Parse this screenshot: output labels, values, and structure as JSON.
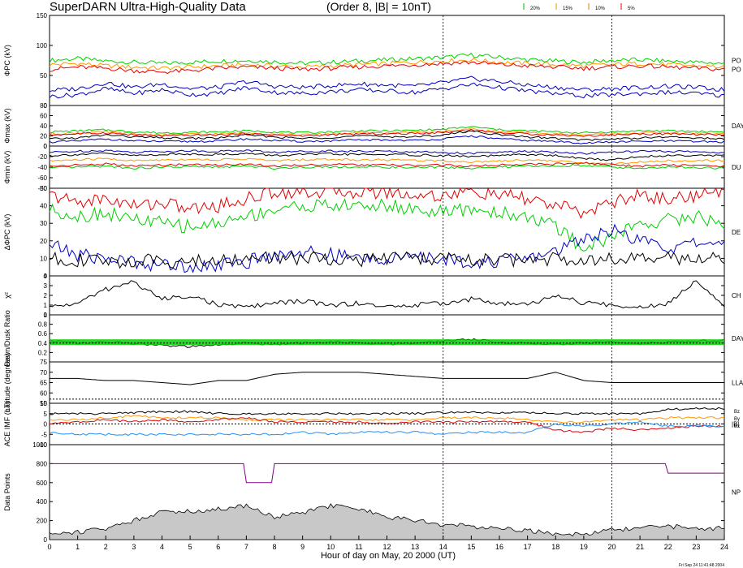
{
  "header": {
    "title": "SuperDARN Ultra-High-Quality Data",
    "subtitle": "(Order 8, |B| = 10nT)",
    "legend": [
      {
        "label": "20%",
        "color": "#00c000"
      },
      {
        "label": "15%",
        "color": "#e0a000"
      },
      {
        "label": "10%",
        "color": "#e08000"
      },
      {
        "label": "5%",
        "color": "#e00000"
      }
    ]
  },
  "footer": {
    "xlabel": "Hour of day on May, 20 2000 (UT)",
    "timestamp": "Fri Sep 24 11:41:48 2004"
  },
  "colors": {
    "red": "#e00000",
    "green": "#00d000",
    "orange": "#ff9900",
    "blue": "#0000c0",
    "black": "#000000",
    "cyan": "#1e90ff",
    "purple": "#800080",
    "gray": "#c8c8c8"
  },
  "chart_data": {
    "type": "line",
    "x": {
      "range": [
        0,
        24
      ],
      "ticks": [
        "0",
        "1",
        "2",
        "3",
        "4",
        "5",
        "6",
        "7",
        "8",
        "9",
        "10",
        "11",
        "12",
        "13",
        "14",
        "15",
        "16",
        "17",
        "18",
        "19",
        "20",
        "21",
        "22",
        "23",
        "24"
      ]
    },
    "markers_x": [
      14,
      20
    ],
    "panels": [
      {
        "id": "pc",
        "ylabel": "ΦPC (kV)",
        "ylim": [
          0,
          150
        ],
        "ticks": [
          "0",
          "50",
          "100",
          "150"
        ],
        "right_label": "PO",
        "right_label2": "PO",
        "series": [
          {
            "color": "green",
            "values": [
              75,
              78,
              74,
              72,
              70,
              72,
              74,
              75,
              73,
              70,
              72,
              74,
              76,
              78,
              80,
              84,
              80,
              76,
              74,
              72,
              75,
              76,
              74,
              72,
              70
            ]
          },
          {
            "color": "orange",
            "values": [
              68,
              70,
              66,
              64,
              62,
              64,
              66,
              68,
              66,
              64,
              66,
              68,
              70,
              72,
              74,
              76,
              72,
              70,
              68,
              66,
              68,
              70,
              68,
              66,
              64
            ]
          },
          {
            "color": "red",
            "values": [
              60,
              64,
              62,
              58,
              56,
              58,
              62,
              64,
              62,
              60,
              62,
              64,
              66,
              68,
              70,
              72,
              68,
              66,
              64,
              62,
              64,
              66,
              64,
              62,
              60
            ]
          },
          {
            "color": "blue",
            "values": [
              25,
              28,
              38,
              30,
              36,
              28,
              30,
              40,
              32,
              30,
              33,
              36,
              34,
              32,
              38,
              45,
              40,
              34,
              30,
              26,
              28,
              30,
              32,
              30,
              26
            ]
          },
          {
            "color": "blue",
            "values": [
              15,
              18,
              28,
              20,
              26,
              18,
              20,
              30,
              22,
              20,
              23,
              26,
              24,
              22,
              28,
              35,
              30,
              24,
              20,
              16,
              18,
              20,
              22,
              20,
              16
            ]
          }
        ]
      },
      {
        "id": "max",
        "ylabel": "Φmax (kV)",
        "ylim": [
          0,
          80
        ],
        "ticks": [
          "0",
          "20",
          "40",
          "60",
          "80"
        ],
        "right_label": "DAY",
        "series": [
          {
            "color": "green",
            "values": [
              28,
              30,
              32,
              28,
              26,
              27,
              28,
              30,
              28,
              26,
              28,
              30,
              30,
              31,
              33,
              38,
              32,
              30,
              28,
              26,
              28,
              30,
              30,
              29,
              28
            ]
          },
          {
            "color": "orange",
            "values": [
              24,
              26,
              28,
              24,
              22,
              23,
              24,
              26,
              24,
              22,
              24,
              26,
              26,
              27,
              29,
              34,
              28,
              26,
              24,
              22,
              24,
              26,
              26,
              25,
              24
            ]
          },
          {
            "color": "red",
            "values": [
              22,
              24,
              26,
              22,
              20,
              21,
              22,
              24,
              22,
              20,
              22,
              24,
              24,
              25,
              27,
              32,
              26,
              24,
              22,
              20,
              22,
              24,
              24,
              23,
              22
            ]
          },
          {
            "color": "black",
            "values": [
              14,
              16,
              22,
              18,
              16,
              15,
              16,
              22,
              18,
              15,
              17,
              20,
              19,
              18,
              22,
              30,
              22,
              18,
              15,
              12,
              14,
              16,
              18,
              16,
              14
            ]
          },
          {
            "color": "blue",
            "values": [
              8,
              10,
              14,
              10,
              9,
              9,
              10,
              14,
              11,
              9,
              10,
              12,
              12,
              11,
              14,
              20,
              14,
              11,
              9,
              6,
              8,
              9,
              10,
              9,
              8
            ]
          }
        ]
      },
      {
        "id": "min",
        "ylabel": "Φmin (kV)",
        "ylim": [
          -80,
          0
        ],
        "ticks": [
          "-80",
          "-60",
          "-40",
          "-20",
          "0"
        ],
        "right_label": "DU",
        "series": [
          {
            "color": "blue",
            "values": [
              -12,
              -10,
              -8,
              -12,
              -10,
              -9,
              -10,
              -8,
              -12,
              -10,
              -9,
              -10,
              -10,
              -11,
              -12,
              -14,
              -12,
              -10,
              -12,
              -14,
              -12,
              -10,
              -10,
              -11,
              -12
            ]
          },
          {
            "color": "black",
            "values": [
              -18,
              -16,
              -14,
              -18,
              -16,
              -15,
              -16,
              -14,
              -18,
              -16,
              -15,
              -16,
              -16,
              -17,
              -18,
              -20,
              -18,
              -16,
              -18,
              -24,
              -26,
              -20,
              -18,
              -17,
              -18
            ]
          },
          {
            "color": "orange",
            "values": [
              -28,
              -26,
              -24,
              -28,
              -26,
              -25,
              -26,
              -24,
              -28,
              -26,
              -25,
              -26,
              -26,
              -27,
              -28,
              -30,
              -28,
              -26,
              -28,
              -32,
              -34,
              -30,
              -28,
              -27,
              -28
            ]
          },
          {
            "color": "green",
            "values": [
              -42,
              -40,
              -38,
              -42,
              -40,
              -39,
              -40,
              -38,
              -42,
              -40,
              -39,
              -40,
              -40,
              -41,
              -40,
              -42,
              -40,
              -38,
              -38,
              -36,
              -40,
              -42,
              -40,
              -41,
              -42
            ]
          },
          {
            "color": "red",
            "values": [
              -38,
              -36,
              -34,
              -38,
              -36,
              -35,
              -36,
              -34,
              -38,
              -36,
              -35,
              -36,
              -36,
              -37,
              -36,
              -38,
              -36,
              -34,
              -34,
              -32,
              -36,
              -38,
              -36,
              -37,
              -38
            ]
          }
        ]
      },
      {
        "id": "dpc",
        "ylabel": "ΔΦPC (kV)",
        "ylim": [
          0,
          50
        ],
        "ticks": [
          "0",
          "10",
          "20",
          "30",
          "40",
          "50"
        ],
        "right_label": "DE",
        "series": [
          {
            "color": "red",
            "values": [
              46,
              42,
              44,
              40,
              42,
              38,
              40,
              44,
              48,
              48,
              48,
              48,
              48,
              46,
              46,
              48,
              46,
              44,
              40,
              36,
              42,
              46,
              44,
              46,
              48
            ]
          },
          {
            "color": "green",
            "values": [
              38,
              34,
              36,
              32,
              30,
              28,
              30,
              34,
              38,
              40,
              40,
              40,
              40,
              38,
              36,
              38,
              36,
              34,
              28,
              16,
              22,
              30,
              32,
              34,
              30
            ]
          },
          {
            "color": "blue",
            "values": [
              18,
              12,
              10,
              8,
              6,
              6,
              6,
              8,
              12,
              14,
              12,
              10,
              10,
              10,
              10,
              8,
              8,
              10,
              14,
              22,
              26,
              20,
              16,
              18,
              20
            ]
          },
          {
            "color": "black",
            "values": [
              10,
              9,
              8,
              8,
              9,
              8,
              9,
              10,
              10,
              10,
              10,
              9,
              10,
              10,
              10,
              9,
              9,
              9,
              10,
              10,
              10,
              9,
              10,
              10,
              10
            ]
          }
        ]
      },
      {
        "id": "chi",
        "ylabel": "χ²",
        "ylim": [
          0,
          4
        ],
        "ticks": [
          "0",
          "1",
          "2",
          "3",
          "4"
        ],
        "right_label": "CH",
        "series": [
          {
            "color": "black",
            "values": [
              0.8,
              1.2,
              2.6,
              3.4,
              1.6,
              2.0,
              1.0,
              0.8,
              1.2,
              1.4,
              1.0,
              1.2,
              0.8,
              1.0,
              1.2,
              1.6,
              1.2,
              1.0,
              2.0,
              1.2,
              1.0,
              0.8,
              1.2,
              3.6,
              1.0
            ]
          }
        ]
      },
      {
        "id": "ratio",
        "ylabel": "Dawn/Dusk Ratio",
        "ylim": [
          0,
          1
        ],
        "ticks": [
          "0.2",
          "0.4",
          "0.6",
          "0.8",
          "1"
        ],
        "right_label": "DAY",
        "series": [
          {
            "color": "black",
            "values": [
              0.45,
              0.4,
              0.42,
              0.4,
              0.35,
              0.32,
              0.36,
              0.4,
              0.38,
              0.4,
              0.42,
              0.4,
              0.38,
              0.4,
              0.44,
              0.48,
              0.42,
              0.4,
              0.38,
              0.4,
              0.42,
              0.4,
              0.42,
              0.44,
              0.46
            ]
          }
        ]
      },
      {
        "id": "lat",
        "ylabel": "Latitude (degrees)",
        "ylim": [
          55,
          75
        ],
        "ticks": [
          "55",
          "60",
          "65",
          "70",
          "75"
        ],
        "right_label": "LLA",
        "series": [
          {
            "color": "black",
            "values": [
              67,
              67,
              66,
              66,
              65,
              64,
              66,
              66,
              69,
              70,
              70,
              70,
              69,
              68,
              67,
              67,
              67,
              67,
              70,
              66,
              65,
              65,
              65,
              65,
              65
            ]
          }
        ]
      },
      {
        "id": "imf",
        "ylabel": "ACE IMF (nT)",
        "ylim": [
          -10,
          10
        ],
        "ticks": [
          "-10",
          "-5",
          "0",
          "5",
          "10"
        ],
        "right_label": "|B|",
        "right_sub": [
          "Bz",
          "By",
          "Bx"
        ],
        "series": [
          {
            "color": "black",
            "values": [
              5,
              5,
              5,
              5.5,
              6,
              6,
              5,
              5,
              5,
              5,
              5,
              5,
              5,
              5,
              5.5,
              5.5,
              5.5,
              5.5,
              5,
              5,
              5,
              5,
              7,
              7.5,
              7.5
            ]
          },
          {
            "color": "orange",
            "values": [
              2,
              2,
              3,
              4,
              3,
              3,
              3,
              2,
              2,
              2,
              2,
              2,
              2,
              2,
              3,
              3,
              3,
              2,
              1,
              1,
              2,
              2,
              3,
              3,
              3
            ]
          },
          {
            "color": "red",
            "values": [
              0,
              1,
              2,
              1,
              2,
              1,
              2,
              3,
              1,
              1,
              1,
              1,
              0,
              1,
              1,
              1,
              1,
              1,
              -3,
              -4,
              -2,
              -3,
              -2,
              -1,
              -1
            ]
          },
          {
            "color": "cyan",
            "values": [
              -4,
              -5,
              -5,
              -5,
              -5,
              -5,
              -5,
              -5,
              -5,
              -4,
              -5,
              -4,
              -4,
              -4,
              -5,
              -4,
              -4,
              -4,
              0,
              -1,
              0,
              1,
              -1,
              -1,
              -1
            ]
          }
        ]
      },
      {
        "id": "npts",
        "ylabel": "Data Points",
        "ylim": [
          0,
          1000
        ],
        "ticks": [
          "0",
          "200",
          "400",
          "600",
          "800",
          "1000"
        ],
        "right_label": "NP",
        "series": [
          {
            "color": "purple",
            "step": true,
            "values": [
              800,
              800,
              800,
              800,
              800,
              800,
              800,
              600,
              800,
              800,
              800,
              800,
              800,
              800,
              800,
              800,
              800,
              800,
              800,
              800,
              800,
              800,
              700,
              700,
              700
            ]
          },
          {
            "color": "gray",
            "fill": true,
            "values": [
              60,
              80,
              120,
              200,
              300,
              300,
              320,
              360,
              240,
              280,
              360,
              320,
              240,
              200,
              160,
              140,
              120,
              100,
              60,
              60,
              100,
              120,
              140,
              120,
              120
            ]
          }
        ]
      }
    ]
  }
}
